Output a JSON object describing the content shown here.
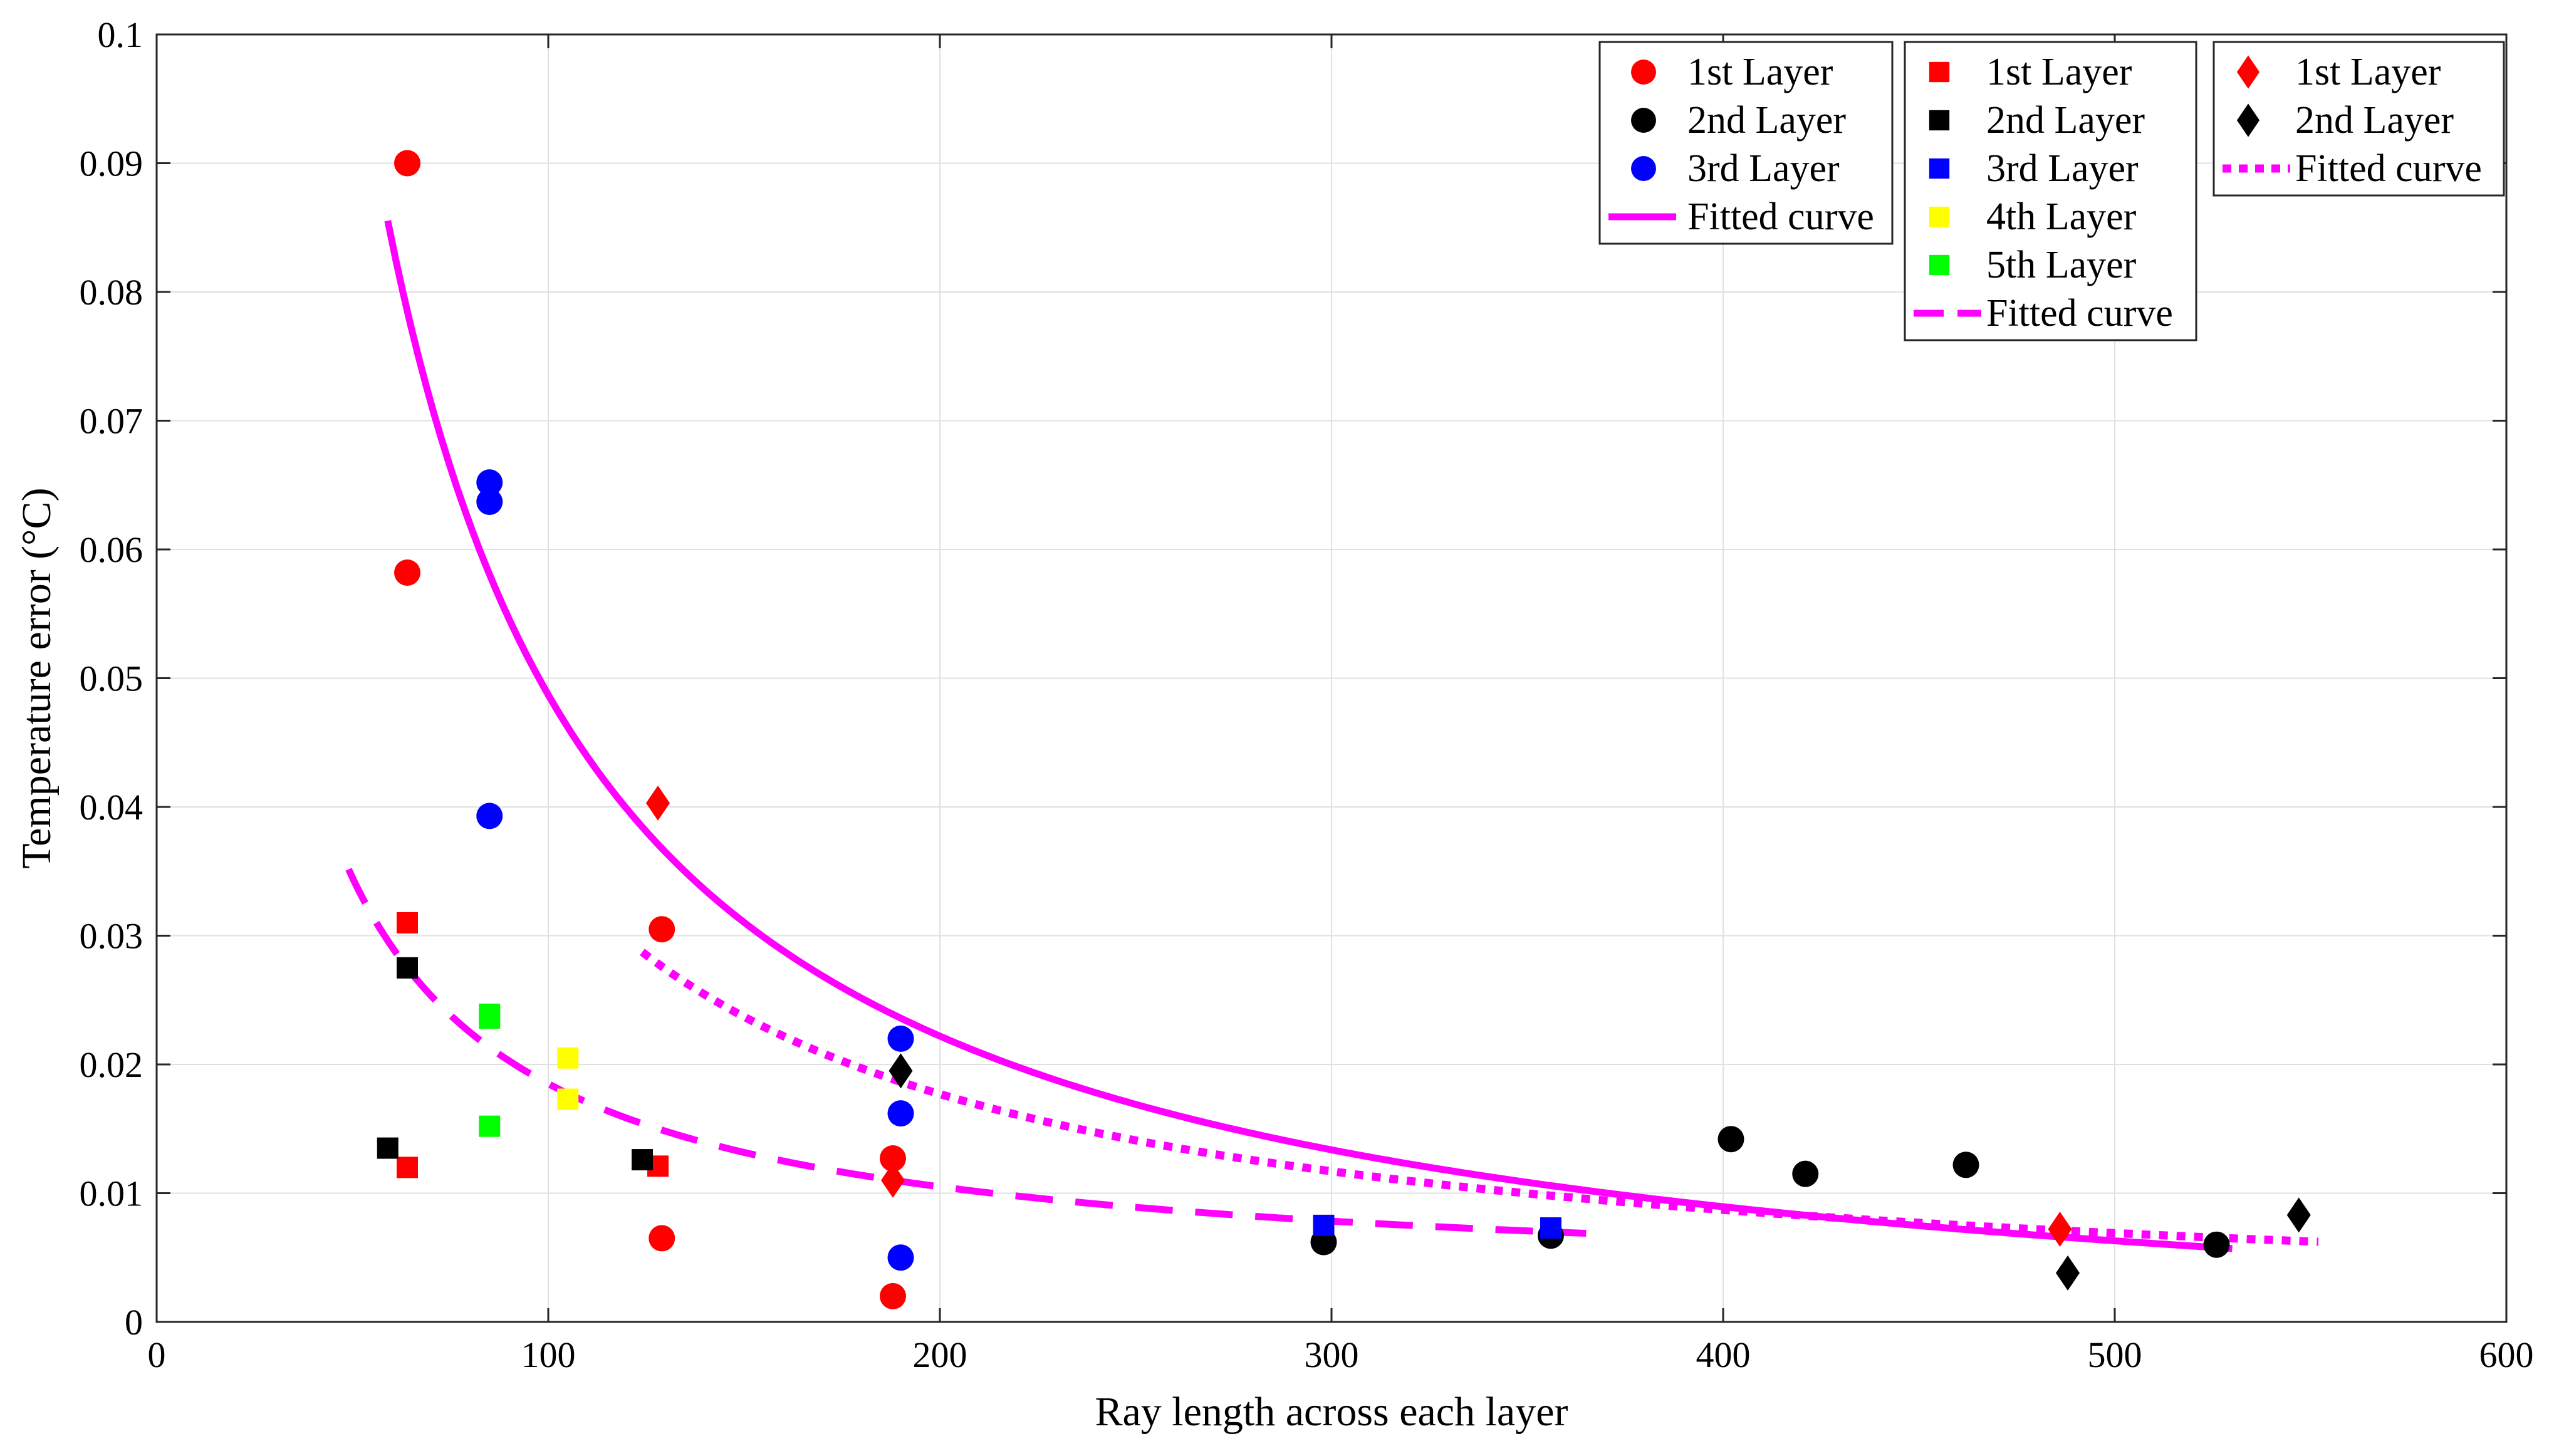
{
  "chart_data": {
    "type": "scatter",
    "title": "",
    "xlabel": "Ray length across each layer",
    "ylabel": "Temperature error (°C)",
    "xlim": [
      0,
      600
    ],
    "ylim": [
      0,
      0.1
    ],
    "xticks": [
      0,
      100,
      200,
      300,
      400,
      500,
      600
    ],
    "xtick_labels": [
      "0",
      "100",
      "200",
      "300",
      "400",
      "500",
      "600"
    ],
    "yticks": [
      0,
      0.01,
      0.02,
      0.03,
      0.04,
      0.05,
      0.06,
      0.07,
      0.08,
      0.09,
      0.1
    ],
    "ytick_labels": [
      "0",
      "0.01",
      "0.02",
      "0.03",
      "0.04",
      "0.05",
      "0.06",
      "0.07",
      "0.08",
      "0.09",
      "0.1"
    ],
    "grid": true,
    "colors": {
      "red": "#ff0000",
      "black": "#000000",
      "blue": "#0000ff",
      "yellow": "#ffff00",
      "green": "#00ff00",
      "magenta": "#ff00ff"
    },
    "groups": [
      {
        "marker": "circle",
        "legend_position": "top-center",
        "series": [
          {
            "name": "1st Layer",
            "color": "#ff0000",
            "points": [
              [
                64,
                0.09
              ],
              [
                64,
                0.0582
              ],
              [
                129,
                0.0305
              ],
              [
                188,
                0.0127
              ],
              [
                188,
                0.002
              ],
              [
                129,
                0.0065
              ]
            ]
          },
          {
            "name": "2nd Layer",
            "color": "#000000",
            "points": [
              [
                298,
                0.0062
              ],
              [
                356,
                0.0067
              ],
              [
                402,
                0.0142
              ],
              [
                421,
                0.0115
              ],
              [
                462,
                0.0122
              ],
              [
                526,
                0.006
              ]
            ]
          },
          {
            "name": "3rd Layer",
            "color": "#0000ff",
            "points": [
              [
                85,
                0.0652
              ],
              [
                85,
                0.0637
              ],
              [
                85,
                0.0393
              ],
              [
                190,
                0.022
              ],
              [
                190,
                0.0162
              ],
              [
                190,
                0.005
              ]
            ]
          }
        ],
        "fit": {
          "name": "Fitted curve",
          "style": "solid",
          "model": "y = a/x + b",
          "a": 5.3,
          "b": -0.0043,
          "x_range": [
            59,
            530
          ]
        }
      },
      {
        "marker": "square",
        "legend_position": "top-right",
        "series": [
          {
            "name": "1st Layer",
            "color": "#ff0000",
            "points": [
              [
                64,
                0.031
              ],
              [
                64,
                0.012
              ],
              [
                128,
                0.0121
              ]
            ]
          },
          {
            "name": "2nd Layer",
            "color": "#000000",
            "points": [
              [
                64,
                0.0275
              ],
              [
                59,
                0.0135
              ],
              [
                124,
                0.0126
              ]
            ]
          },
          {
            "name": "3rd Layer",
            "color": "#0000ff",
            "points": [
              [
                298,
                0.0075
              ],
              [
                356,
                0.0073
              ]
            ]
          },
          {
            "name": "4th Layer",
            "color": "#ffff00",
            "points": [
              [
                105,
                0.0205
              ],
              [
                105,
                0.0173
              ]
            ]
          },
          {
            "name": "5th Layer",
            "color": "#00ff00",
            "points": [
              [
                85,
                0.0239
              ],
              [
                85,
                0.0236
              ],
              [
                85,
                0.0152
              ]
            ]
          }
        ],
        "fit": {
          "name": "Fitted curve",
          "style": "dashed",
          "model": "y = a/x + b",
          "a": 1.6,
          "b": 0.0025,
          "x_range": [
            49,
            365
          ]
        }
      },
      {
        "marker": "diamond",
        "legend_position": "top-right",
        "series": [
          {
            "name": "1st Layer",
            "color": "#ff0000",
            "points": [
              [
                128,
                0.0403
              ],
              [
                188,
                0.011
              ],
              [
                486,
                0.0072
              ]
            ]
          },
          {
            "name": "2nd Layer",
            "color": "#000000",
            "points": [
              [
                190,
                0.0195
              ],
              [
                488,
                0.0038
              ],
              [
                547,
                0.0083
              ]
            ]
          }
        ],
        "fit": {
          "name": "Fitted curve",
          "style": "dotted",
          "model": "y = a/x + b",
          "a": 3.6,
          "b": -0.0003,
          "x_range": [
            124,
            552
          ]
        }
      }
    ]
  }
}
